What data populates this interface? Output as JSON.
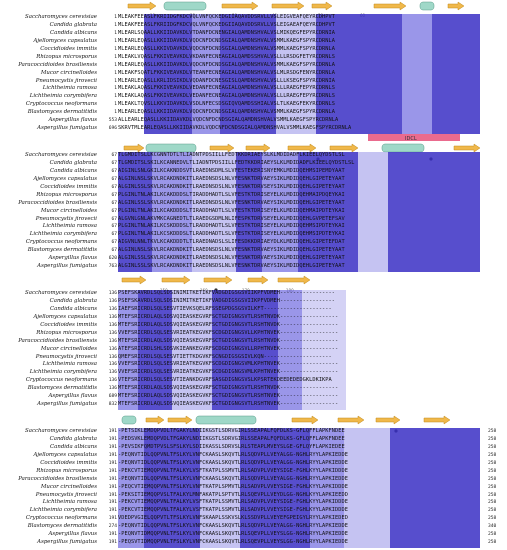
{
  "figure": {
    "idcl_label": "IDCL",
    "blocks": [
      {
        "id": "block1",
        "species": [
          "Saccharomyces cerevisiae",
          "Candida glabrata",
          "Candida albicans",
          "Ajellomyces capsulatus",
          "Coccidioides immitis",
          "Rhizopus microsporus",
          "Paracoccidioides brasiliensis",
          "Mucor circinelloides",
          "Pneumocystis jirovecii",
          "Lichtheimia ramosa",
          "Lichtheimia corymbifera",
          "Cryptococcus neoformans",
          "Blastomyces dermatitidis",
          "Aspergillus flavus",
          "Aspergillus fumigatus"
        ],
        "start_numbers": [
          "1",
          "1",
          "1",
          "1",
          "1",
          "1",
          "1",
          "1",
          "1",
          "1",
          "1",
          "1",
          "1",
          "553",
          "696"
        ],
        "sequences": [
          "MLEAKFEEASLFKRIIDGFKDCVQLVNFQCKEDGIIAQAVDDSRVLLVSLEIGVEAFQEYRCDHPVT",
          "MLEAKFEEASLFKRIIDGFKDCVQLVNFQCKEDGIIAQAVDDSRVLLVSLEIGAEAFQEYRCDHPVT",
          "MLEARLSQAALLKKIIDAVKDLVTDANFDCNENGIALQAMDNSHVALVSLMIKQEGFEPYRCDRNIA",
          "MLEARLEQASLLKKIIDAVKDLVQDCNFDCNDSGIALQAMDNSHVALVSMMLKAEGFSPYRCDRNLA",
          "MLEARLEQASLLKKIVDAVKDLVQDCNFDCNDSGIALQAMDNSHVALVSMMLKAEGFSPYRCDRNLA",
          "MLEAKLVQASLFKKIVEAVKDLVKDANFECNEAGIALQAMDSSHVALVSLLLRSDGFETYRCDRNLS",
          "MLEARLEQASLLKKIIDAVKDLVQDCNFDCNDSGIALQAMDNSHVALVSMMLKAEGFSPYRCDRNLA",
          "MLEAKFSQATLFKKIVEAVKDLVTEANFECNEAGIALQAMDNSHVALVSLMLRSDGFENYRCDRNLA",
          "MLEARLEQASLLKRLIDSIKDLVQDANFDCNESGISLQAMDNSHVALVSLLLKSEGFSPYRCDRNIA",
          "MLEAKLAQASLFKKIVEAVKDLVEDANFECNEAGIALQAMDNSHVALVSLLLRAEGFEPYRCDRNLS",
          "MLEAKLAQASLFKKIVEAVKDLVEDANFECNEAGIALQAMDNSHVALVSLLLRAEGFEPYRCDRNLS",
          "MLEAKLTQVSLLKKVIDAVKDLVSDLNFECSDSGIQVQAMDSSHIALVSLTLKAEGFEKYRCDRNLS",
          "MLEARLEQASLLKKIIDAVKDLVQDCNFDCNDSGIALQAMDNSHVALVSMMLKAEGFSPYRCDRNLA",
          "ALLEARLEQASLLKKIIDAVKDLVQDCNFDCNDSGIALQAMDNSHVALVSMMLKAEGFSPYRCDRNLA",
          "SKRVTMLEARLEQASLLKKIIDAVKDLVQDCNFDCNDSGIALQAMDNSHVALVSMMLKAEGFSPYRCDRNLA"
        ],
        "end_numbers": [
          "",
          "",
          "",
          "",
          "",
          "",
          "",
          "",
          "",
          "",
          "",
          "",
          "",
          "",
          ""
        ]
      },
      {
        "id": "block2",
        "species": [
          "Saccharomyces cerevisiae",
          "Candida glabrata",
          "Candida albicans",
          "Ajellomyces capsulatus",
          "Coccidioides immitis",
          "Rhizopus microsporus",
          "Paracoccidioides brasiliensis",
          "Mucor circinelloides",
          "Pneumocystis jirovecii",
          "Lichtheimia ramosa",
          "Lichtheimia corymbifera",
          "Cryptococcus neoformans",
          "Blastomyces dermatitidis",
          "Aspergillus flavus",
          "Aspergillus fumigatus"
        ],
        "start_numbers": [
          "67",
          "67",
          "67",
          "67",
          "67",
          "67",
          "67",
          "67",
          "67",
          "67",
          "67",
          "67",
          "67",
          "620",
          "763"
        ],
        "sequences": [
          "TLGMDITSLLKCGNNTDTLTLIADNTPDSIILLFEDTKKDRIAEYSLKLMDIDADFLKIEELQYDSTLSL",
          "TLGMDITSLSKILKCANNEDVLTLIADNTPDSIILLFEDTKKDRIAEYSLKLMDIDADFLKIEELQYDSTLSL",
          "AIGINLSNLGKILKCAKNDDSVTLRAEDNSDMLSLVFESTEKERISNYEMKLMDIDQEHMSIPEMDYAAT",
          "ALGINLNSLSKVLRCAKDNDKITLRAEDNSDSLNLVFESNKTDRVAEYSIKLMDIDQEHLGIPETEYAAT",
          "ALGINLSSLSKVLRCAKDNDKITLRAEDNSDSLNLVFESNKTDRVSEYSIKLMDIDQEHLGIPETEYAAT",
          "PLGINLTNLAKILKCAKDDDSLTIRADDHADTLSLVFESTKTDRISEYELKLMDIDQEHMAIPDQEYKAI",
          "ALGINLSSLSKVLRCAKDNDKITLRAEDNSDSLNLVFESNKTDRVAEYSIKLMDIDQEHLGIPETEYAAT",
          "PLGINLTNLAKILKCAKDDDSLTIRADDHADTLSLVFESTKTDRISEYELKLMDIDQEHMAIPDTEYKAI",
          "ALGVNLGNLAKVMKCAGNEDTLTLRAEDGSDMLNLIFESPKTDRVSEYELKLMDIDQEHLGVPETEFSAV",
          "PLGINLTNLAKILKCSKDDDSLTLRADDHADTLSLVFESTKTDRISEYELKLMDIDQEHMSIPDTEYKAI",
          "PLGINLTNLAKILKCSKDDDSLTLRADDHADTLSLVFESTKTDRISEYELKLMDIDQEHMSIPDTEYKAI",
          "AIGVNLNNLTKVLKCAKDDDTLTLRAEDNADSLSLIFESDKKDRIAEYDLKLMDIDQEHLGIPETEFDAT",
          "ALGINLNSLSKVLRCAKDNDKITLRAEDNSDSLNLVFESNKTDRVAEYSIKLMDIDQEHLGIPETEYAAT",
          "ALGINLSSLSKVLRCAKDNDKITLRAEDNSDSLNLVFESNKTDRVAEYSIKLMDIDQEHLGIPETEYAAT",
          "ALGINLSSLSKVLRCAKDNDKITLRAEDNSDSLNLVFESNKTDRVAEYSIKLMDIDQEHLGIPETEYAAT"
        ],
        "end_numbers": [
          "",
          "",
          "",
          "",
          "",
          "",
          "",
          "",
          "",
          "",
          "",
          "",
          "",
          "",
          ""
        ]
      },
      {
        "id": "block3",
        "species": [
          "Saccharomyces cerevisiae",
          "Candida glabrata",
          "Candida albicans",
          "Ajellomyces capsulatus",
          "Coccidioides immitis",
          "Rhizopus microsporus",
          "Paracoccidioides brasiliensis",
          "Mucor circinelloides",
          "Pneumocystis jirovecii",
          "Lichtheimia ramosa",
          "Lichtheimia corymbifera",
          "Cryptococcus neoformans",
          "Blastomyces dermatitidis",
          "Aspergillus flavus",
          "Aspergillus fumigatus"
        ],
        "start_numbers": [
          "136",
          "136",
          "136",
          "136",
          "136",
          "136",
          "136",
          "136",
          "136",
          "136",
          "136",
          "136",
          "136",
          "689",
          "832"
        ],
        "sequences": [
          "PSEFSKAVRDLSQLSDSINIMITKETIKFVADGDIGSGSVIIKPFVDMEH-----------------",
          "PSEFSKAVRDLSQLSDSINIMITKETIKFVADGDIGSGSVIIKPFVDMEH-----------------",
          "IAEFSRICRDLSQLSESVTIEVKSQELRFSSEGPDGSGSVILKFT---------------------",
          "MTEFSRICRDLAQLSDSVQIEASKEGVRFSCTGDIGNGSVTLRSHTNVDK------------------",
          "MTEFSRICRDLAQLSDSVQIEASKEGVRFSCTGDIGNGSVTLRSHTNVDK------------------",
          "VVEFSRICRDLSQLSESVRIEATKEGVKFSCDGDIGNGSVLLKPHTNVEK------------------",
          "MTEFSRICRDLAQLSDSVQIEASKEGVRFSCTGDIGNGSVTLRSHTNVDK------------------",
          "ATEFSRICRDLSHLSDSVKIEANKEGVRFSCDGDIGNGSVLLRPHTNVEK------------------",
          "QMEFSRICRDLSQLSESVTIETTKDGVKFSCNGDIGSGSIVLKQN---------------------",
          "VVEFSRICRDLSQLSESVRIEATKEGVKFSCDGDIGNGSVMLKPHTNVEK------------------",
          "VVEFSRICRDLSQLSESVRIEATKEGVKFSCDGDIGNGSVMLKPHTNVEK------------------",
          "VTEFSRICRDLSQLSESVTIEANKDGVRFSASGDIGNGSVSLKPSRTEKDEEDEDEDGKLDKIKPA",
          "MTEFSRICRDLAQLSDSVQIEASKEGVRFSCTGDIGNGSVTLRSHTNVDK------------------",
          "MTEFSRICRDLAQLSDSVQIEASKEGVKFSCTGDIGNGSVTLRSHTNVEK------------------",
          "MTEFSRICRDLAQLSDSVQIEASKEGVKFSCTGDIGNGSVTLRSHTNVEK------------------"
        ],
        "end_numbers": [
          "",
          "",
          "",
          "",
          "",
          "",
          "",
          "",
          "",
          "",
          "",
          "",
          "",
          "",
          ""
        ]
      },
      {
        "id": "block4",
        "species": [
          "Saccharomyces cerevisiae",
          "Candida glabrata",
          "Candida albicans",
          "Ajellomyces capsulatus",
          "Coccidioides immitis",
          "Rhizopus microsporus",
          "Paracoccidioides brasiliensis",
          "Mucor circinelloides",
          "Pneumocystis jirovecii",
          "Lichtheimia ramosa",
          "Lichtheimia corymbifera",
          "Cryptococcus neoformans",
          "Blastomyces dermatitidis",
          "Aspergillus flavus",
          "Aspergillus fumigatus"
        ],
        "start_numbers": [
          "191",
          "191",
          "191",
          "191",
          "191",
          "191",
          "191",
          "191",
          "191",
          "191",
          "191",
          "191",
          "274",
          "191",
          "191"
        ],
        "sequences": [
          "-PETSIKLEMDQPVDLTFGAKYLNDIIKGSTLSDRVGIRLSSEAPALFQFDLKS-GFLQFFLAPKFNDEE",
          "-PEDSVKLEMDQPVDLTFGAKYLNDIIKGSTLSDRVGIRLSSEAPALFQFDLKS-GFLQFFLAPKFNDEE",
          "-PEVSIKFQMDTPVSLSFSLKYLSDIIKASSLSDRVSLRLSTEAPLMVEYSLGE-GFLQYFLAPKIEDEE",
          "-PEQNVTIDLQQPVNLTFSLKYLVNFCKAASLSKQVTLRLSQDVPLLVEYALGG-NGHLRYYLAPKIEDDE",
          "-PEQNVTIDLQQPVNLTFSLKYLVNFCKAASLSKQVTLRLSQDVPLLVEYALGG-NGHLRYYLAPKIEDDE",
          "-PEKCVTIEMQQPVNLTFALKYLVSFTKATPLSSMVTLRLSADVPLVVEYSIGE-FGHLKYYLAPKIDDDE",
          "-PEQNVTIDLQQPVNLTFSLKYLVNFCKAASLSKQVTLRLSQDVPLLVEYALGG-NGHLRYYLAPKIEDDE",
          "-PEQCVTIEMQQPVNLTFSLKYLVNFTKATPLSPMVTLRLSADVPLVVEYSIGE-FGHLKYYLAPKIDDDE",
          "-PEKSITIEMQQPVSLTFALKYLMNFAKATPLSPTVTLRLSQEVPLLVEYDLGG-NGHLKYYLAPKIEEDD",
          "-PEKCVTIEMQQPVNLTFALKYLVSFTKATPLSSMVTLRLSADVPLVVEYSIGE-FGHLKYYLAPKIDDDE",
          "-PEKCVTIEMQQPVNLTFALKYLVSFTKATPLSSMVTLRLSADVPLVVEYSIGE-FGHLKYYLAPKIDDDE",
          "VDEDPVGIELQQPVTLTFSLKYLVNFSKAAPLSSKVSLKLSSDVPLLVEYEFGPEIGYLRYYLAPKIEDED",
          "-PEQNVTIDLQQPVNLTFSLKYLVNFCKAASLSKQVTLRLSQDVPLLVEYALGG-NGHLRYYLAPKIEDDE",
          "-PEQNVTIDMQQPVNLTFSLKYLVNFCKAASLSKQVTLRLSQEVPLLVEYSLGG-NGHLRYYLAPKIEDDE",
          "-PEQSVTIDMQQPVNLTFSLKYLVNFCKAASLSKQVTLRLSQEVPLLVEYSLGG-NGHLRYYLAPKIEDDE"
        ],
        "end_numbers": [
          "258",
          "258",
          "258",
          "258",
          "258",
          "258",
          "258",
          "258",
          "258",
          "258",
          "258",
          "258",
          "340",
          "258",
          "258"
        ]
      }
    ]
  },
  "colors": {
    "strand": "#f0b84a",
    "strand_edge": "#c08a1a",
    "helix": "#9fd8c8",
    "helix_edge": "#5a9c8a",
    "idcl": "#ea6b8e",
    "conserved_strong": "#3a2fc4",
    "conserved_mid": "#6f6ae0",
    "conserved_low": "#b7b4ef"
  },
  "icons": {
    "beta_strand": "arrow-icon",
    "alpha_helix": "cylinder-icon",
    "mutation_site": "asterisk-icon"
  }
}
